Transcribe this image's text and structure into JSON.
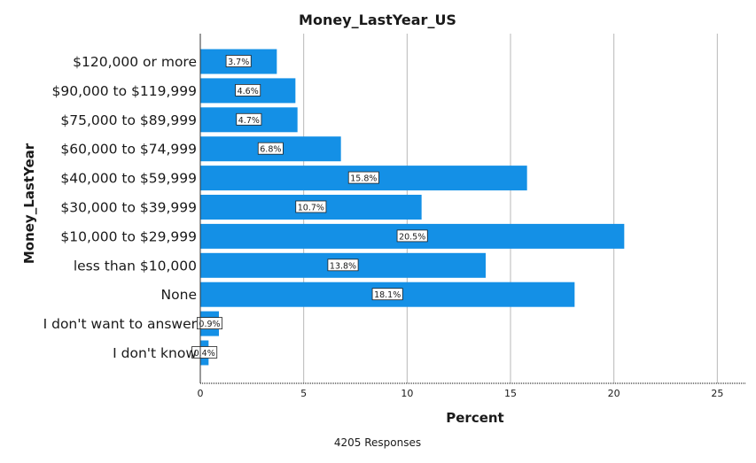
{
  "chart_data": {
    "type": "bar",
    "orientation": "horizontal",
    "title": "Money_LastYear_US",
    "xlabel": "Percent",
    "ylabel": "Money_LastYear",
    "footnote": "4205 Responses",
    "categories": [
      "$120,000 or more",
      "$90,000 to $119,999",
      "$75,000 to $89,999",
      "$60,000 to $74,999",
      "$40,000 to $59,999",
      "$30,000 to $39,999",
      "$10,000 to $29,999",
      "less than $10,000",
      "None",
      "I don't want to answer",
      "I don't know"
    ],
    "values": [
      3.7,
      4.6,
      4.7,
      6.8,
      15.8,
      10.7,
      20.5,
      13.8,
      18.1,
      0.9,
      0.4
    ],
    "data_labels": [
      "3.7%",
      "4.6%",
      "4.7%",
      "6.8%",
      "15.8%",
      "10.7%",
      "20.5%",
      "13.8%",
      "18.1%",
      "0.9%",
      "0.4%"
    ],
    "xlim": [
      0,
      26.4
    ],
    "xticks": [
      0,
      5,
      10,
      15,
      20,
      25
    ],
    "xtick_labels": [
      "0",
      "5",
      "10",
      "15",
      "20",
      "25"
    ],
    "grid": "vertical",
    "legend": "none",
    "colors": {
      "bar": "#1490e6",
      "grid": "#b8b8b8",
      "axis": "#333333",
      "label_box": "#ffffff",
      "text": "#1a1a1a"
    }
  }
}
